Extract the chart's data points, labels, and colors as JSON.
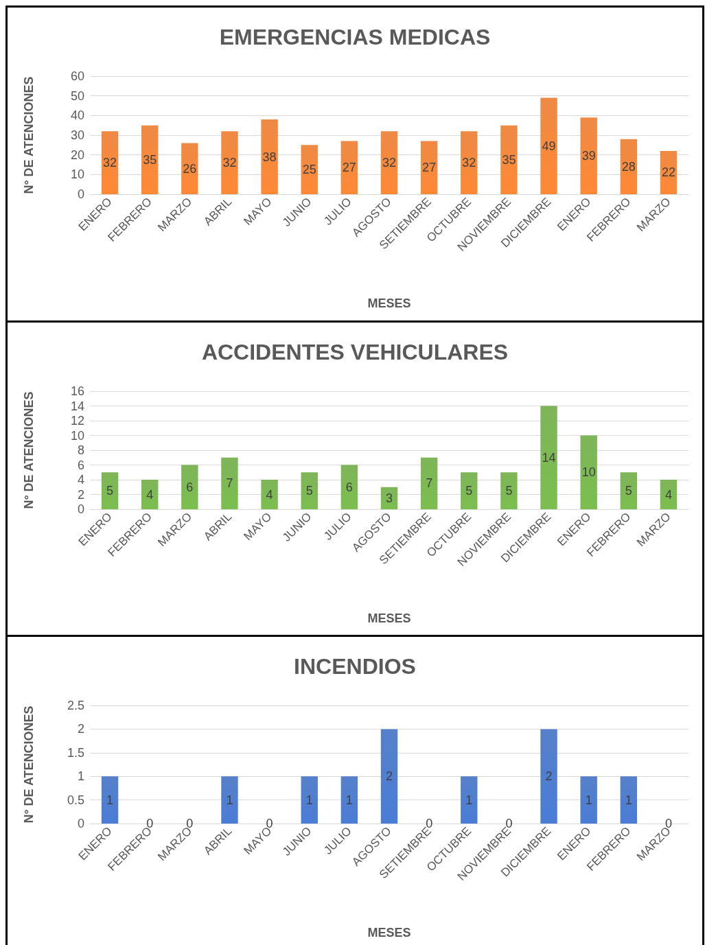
{
  "chart_data": [
    {
      "type": "bar",
      "title": "EMERGENCIAS MEDICAS",
      "xlabel": "MESES",
      "ylabel": "N° DE ATENCIONES",
      "categories": [
        "ENERO",
        "FEBRERO",
        "MARZO",
        "ABRIL",
        "MAYO",
        "JUNIO",
        "JULIO",
        "AGOSTO",
        "SETIEMBRE",
        "OCTUBRE",
        "NOVIEMBRE",
        "DICIEMBRE",
        "ENERO",
        "FEBRERO",
        "MARZO"
      ],
      "values": [
        32,
        35,
        26,
        32,
        38,
        25,
        27,
        32,
        27,
        32,
        35,
        49,
        39,
        28,
        22
      ],
      "color": "#ed7d31",
      "ylim": [
        0,
        60
      ],
      "yticks": [
        0,
        10,
        20,
        30,
        40,
        50,
        60
      ],
      "grid": "y",
      "data_labels": true
    },
    {
      "type": "bar",
      "title": "ACCIDENTES VEHICULARES",
      "xlabel": "MESES",
      "ylabel": "N° DE ATENCIONES",
      "categories": [
        "ENERO",
        "FEBRERO",
        "MARZO",
        "ABRIL",
        "MAYO",
        "JUNIO",
        "JULIO",
        "AGOSTO",
        "SETIEMBRE",
        "OCTUBRE",
        "NOVIEMBRE",
        "DICIEMBRE",
        "ENERO",
        "FEBRERO",
        "MARZO"
      ],
      "values": [
        5,
        4,
        6,
        7,
        4,
        5,
        6,
        3,
        7,
        5,
        5,
        14,
        10,
        5,
        4
      ],
      "color": "#70ad47",
      "ylim": [
        0,
        16
      ],
      "yticks": [
        0,
        2,
        4,
        6,
        8,
        10,
        12,
        14,
        16
      ],
      "grid": "y",
      "data_labels": true
    },
    {
      "type": "bar",
      "title": "INCENDIOS",
      "xlabel": "MESES",
      "ylabel": "N° DE ATENCIONES",
      "categories": [
        "ENERO",
        "FEBRERO",
        "MARZO",
        "ABRIL",
        "MAYO",
        "JUNIO",
        "JULIO",
        "AGOSTO",
        "SETIEMBRE",
        "OCTUBRE",
        "NOVIEMBRE",
        "DICIEMBRE",
        "ENERO",
        "FEBRERO",
        "MARZO"
      ],
      "values": [
        1,
        0,
        0,
        1,
        0,
        1,
        1,
        2,
        0,
        1,
        0,
        2,
        1,
        1,
        0
      ],
      "color": "#4472c4",
      "ylim": [
        0,
        2.5
      ],
      "yticks": [
        0,
        0.5,
        1,
        1.5,
        2,
        2.5
      ],
      "grid": "y",
      "data_labels": true
    }
  ]
}
